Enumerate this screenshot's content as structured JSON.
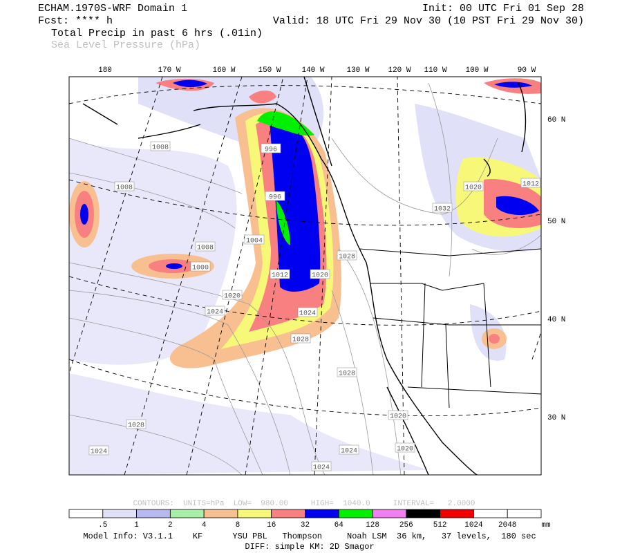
{
  "header": {
    "model": "ECHAM.1970S-WRF Domain 1",
    "fcst": "Fcst: **** h",
    "field1": "Total Precip in past 6 hrs (.01in)",
    "field2": "Sea Level Pressure (hPa)",
    "init": "Init: 00 UTC Fri 01 Sep 28",
    "valid": "Valid: 18 UTC Fri 29 Nov 30 (10 PST Fri 29 Nov 30)"
  },
  "map": {
    "lon_labels": [
      "180",
      "170 W",
      "160 W",
      "150 W",
      "140 W",
      "130 W",
      "120 W",
      "110 W",
      "100 W",
      "90 W"
    ],
    "lat_labels": [
      "60 N",
      "50 N",
      "40 N",
      "30 N"
    ],
    "contour_labels": [
      "1008",
      "1008",
      "996",
      "996",
      "1004",
      "1008",
      "1000",
      "1012",
      "1020",
      "1020",
      "1024",
      "1024",
      "1028",
      "1028",
      "1032",
      "1028",
      "1028",
      "1024",
      "1024",
      "1024",
      "1020",
      "1020",
      "1020",
      "1012"
    ]
  },
  "colorbar": {
    "contours_info": "CONTOURS:  UNITS=hPa  LOW=  980.00     HIGH=  1040.0     INTERVAL=   2.0000",
    "labels": [
      ".5",
      "1",
      "2",
      "4",
      "8",
      "16",
      "32",
      "64",
      "128",
      "256",
      "512",
      "1024",
      "2048"
    ],
    "unit": "mm",
    "colors": [
      "#ffffff",
      "#e0e0f8",
      "#b8b8f0",
      "#a8f0a8",
      "#f8c090",
      "#f8f878",
      "#f88080",
      "#0000f0",
      "#00f000",
      "#f080f0",
      "#000000",
      "#f00000",
      "#ffffff",
      "#ffffff"
    ]
  },
  "footer": {
    "model_info": "Model Info: V3.1.1    KF      YSU PBL   Thompson     Noah LSM  36 km,   37 levels,  180 sec",
    "diff": "DIFF: simple KM: 2D Smagor"
  }
}
